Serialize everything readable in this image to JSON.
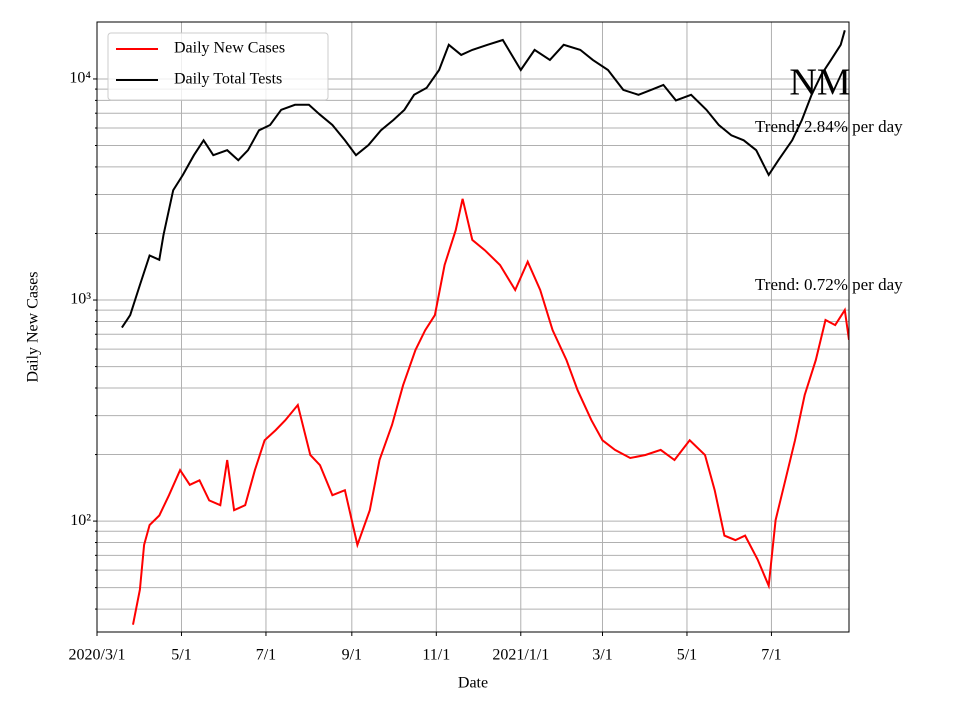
{
  "chart_data": {
    "type": "line",
    "title": "NM",
    "xlabel": "Date",
    "ylabel": "Daily New Cases",
    "log_y": true,
    "grid": true,
    "legend": "upper left",
    "xlim": [
      "2020-03-01",
      "2021-08-26"
    ],
    "xticks": [
      {
        "value": "2020-03-01",
        "label": "2020/3/1"
      },
      {
        "value": "2020-05-01",
        "label": "5/1"
      },
      {
        "value": "2020-07-01",
        "label": "7/1"
      },
      {
        "value": "2020-09-01",
        "label": "9/1"
      },
      {
        "value": "2020-11-01",
        "label": "11/1"
      },
      {
        "value": "2021-01-01",
        "label": "2021/1/1"
      },
      {
        "value": "2021-03-01",
        "label": "3/1"
      },
      {
        "value": "2021-05-01",
        "label": "5/1"
      },
      {
        "value": "2021-07-01",
        "label": "7/1"
      }
    ],
    "ylim": [
      31.5,
      18100
    ],
    "yticks": [
      {
        "value": 100,
        "label": "10²"
      },
      {
        "value": 1000,
        "label": "10³"
      },
      {
        "value": 10000,
        "label": "10⁴"
      }
    ],
    "yminorticks": [
      40,
      50,
      60,
      70,
      80,
      90,
      200,
      300,
      400,
      500,
      600,
      700,
      800,
      900,
      2000,
      3000,
      4000,
      5000,
      6000,
      7000,
      8000,
      9000
    ],
    "annotations": [
      {
        "text": "Trend: 2.84% per day",
        "series": 1
      },
      {
        "text": "Trend: 0.72% per day",
        "series": 0
      }
    ],
    "series": [
      {
        "name": "Daily New Cases",
        "color": "#ff0000",
        "x": [
          "2020-03-27",
          "2020-04-01",
          "2020-04-04",
          "2020-04-08",
          "2020-04-15",
          "2020-04-22",
          "2020-04-30",
          "2020-05-07",
          "2020-05-14",
          "2020-05-21",
          "2020-05-29",
          "2020-06-03",
          "2020-06-08",
          "2020-06-16",
          "2020-06-23",
          "2020-06-30",
          "2020-07-08",
          "2020-07-15",
          "2020-07-24",
          "2020-08-02",
          "2020-08-09",
          "2020-08-18",
          "2020-08-27",
          "2020-09-05",
          "2020-09-14",
          "2020-09-21",
          "2020-09-30",
          "2020-10-08",
          "2020-10-17",
          "2020-10-24",
          "2020-10-31",
          "2020-11-07",
          "2020-11-15",
          "2020-11-20",
          "2020-11-27",
          "2020-12-06",
          "2020-12-17",
          "2020-12-28",
          "2021-01-06",
          "2021-01-15",
          "2021-01-24",
          "2021-02-03",
          "2021-02-11",
          "2021-02-21",
          "2021-03-01",
          "2021-03-10",
          "2021-03-21",
          "2021-04-01",
          "2021-04-12",
          "2021-04-22",
          "2021-05-03",
          "2021-05-14",
          "2021-05-21",
          "2021-05-28",
          "2021-06-05",
          "2021-06-12",
          "2021-06-21",
          "2021-06-29",
          "2021-07-04",
          "2021-07-11",
          "2021-07-18",
          "2021-07-25",
          "2021-08-02",
          "2021-08-09",
          "2021-08-16",
          "2021-08-23",
          "2021-08-26"
        ],
        "values": [
          34,
          49,
          78,
          96,
          106,
          131,
          170,
          146,
          153,
          124,
          118,
          189,
          112,
          118,
          170,
          232,
          258,
          286,
          335,
          199,
          179,
          131,
          138,
          78,
          112,
          189,
          272,
          412,
          595,
          730,
          855,
          1440,
          2070,
          2870,
          1870,
          1680,
          1440,
          1110,
          1490,
          1110,
          730,
          535,
          391,
          286,
          232,
          210,
          193,
          199,
          210,
          189,
          232,
          199,
          138,
          86,
          82,
          86,
          67,
          51,
          101,
          153,
          232,
          372,
          535,
          812,
          770,
          900,
          660
        ]
      },
      {
        "name": "Daily Total Tests",
        "color": "#000000",
        "x": [
          "2020-03-19",
          "2020-03-25",
          "2020-04-01",
          "2020-04-08",
          "2020-04-15",
          "2020-04-18",
          "2020-04-25",
          "2020-05-02",
          "2020-05-10",
          "2020-05-17",
          "2020-05-24",
          "2020-06-03",
          "2020-06-11",
          "2020-06-18",
          "2020-06-26",
          "2020-07-04",
          "2020-07-12",
          "2020-07-22",
          "2020-08-01",
          "2020-08-09",
          "2020-08-18",
          "2020-08-27",
          "2020-09-04",
          "2020-09-13",
          "2020-09-22",
          "2020-10-01",
          "2020-10-09",
          "2020-10-16",
          "2020-10-25",
          "2020-11-03",
          "2020-11-10",
          "2020-11-19",
          "2020-11-27",
          "2020-12-08",
          "2020-12-19",
          "2021-01-01",
          "2021-01-11",
          "2021-01-22",
          "2021-02-01",
          "2021-02-13",
          "2021-02-22",
          "2021-03-05",
          "2021-03-16",
          "2021-03-27",
          "2021-04-05",
          "2021-04-14",
          "2021-04-23",
          "2021-05-04",
          "2021-05-15",
          "2021-05-24",
          "2021-06-02",
          "2021-06-11",
          "2021-06-20",
          "2021-06-29",
          "2021-07-06",
          "2021-07-16",
          "2021-07-23",
          "2021-07-30",
          "2021-08-06",
          "2021-08-13",
          "2021-08-20",
          "2021-08-23"
        ],
        "values": [
          750,
          855,
          1170,
          1590,
          1520,
          1970,
          3140,
          3680,
          4520,
          5280,
          4520,
          4760,
          4290,
          4760,
          5860,
          6190,
          7250,
          7640,
          7640,
          6890,
          6190,
          5280,
          4520,
          5020,
          5860,
          6520,
          7250,
          8480,
          9110,
          10980,
          14270,
          12850,
          13530,
          14270,
          15000,
          10980,
          13530,
          12200,
          14270,
          13530,
          12200,
          10980,
          8920,
          8480,
          8920,
          9400,
          8000,
          8480,
          7250,
          6190,
          5560,
          5280,
          4760,
          3680,
          4290,
          5280,
          6520,
          8480,
          10450,
          12200,
          14270,
          16600
        ]
      }
    ]
  }
}
